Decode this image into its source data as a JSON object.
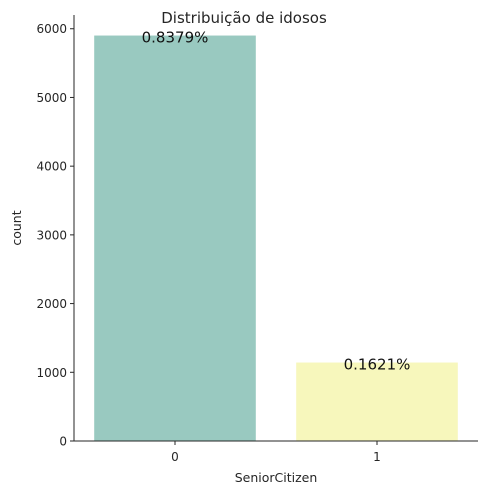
{
  "chart_data": {
    "type": "bar",
    "title": "Distribuição de idosos",
    "xlabel": "SeniorCitizen",
    "ylabel": "count",
    "categories": [
      "0",
      "1"
    ],
    "values": [
      5901,
      1142
    ],
    "bar_labels": [
      "0.8379%",
      "0.1621%"
    ],
    "bar_colors": [
      "#99c9c0",
      "#f7f7bc"
    ],
    "ylim": [
      0,
      6200
    ],
    "yticks": [
      0,
      1000,
      2000,
      3000,
      4000,
      5000,
      6000
    ],
    "grid": false,
    "legend": "none"
  }
}
